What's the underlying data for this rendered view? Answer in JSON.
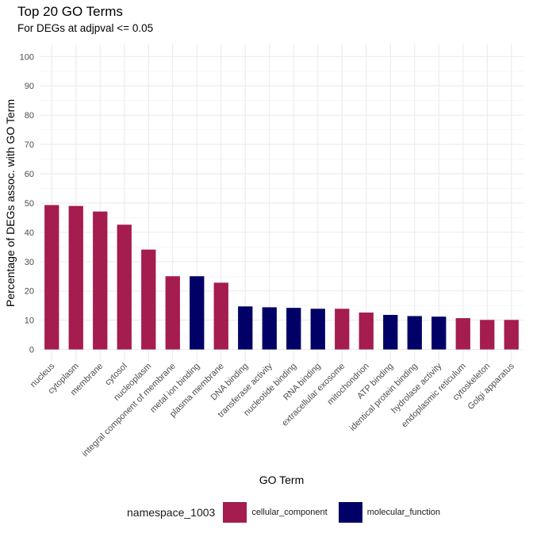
{
  "chart_data": {
    "type": "bar",
    "title": "Top 20 GO Terms",
    "subtitle": "For DEGs at adjpval <= 0.05",
    "xlabel": "GO Term",
    "ylabel": "Percentage of DEGs assoc. with GO Term",
    "ylim": [
      0,
      100
    ],
    "yticks": [
      0,
      10,
      20,
      30,
      40,
      50,
      60,
      70,
      80,
      90,
      100
    ],
    "grid": true,
    "legend": {
      "title": "namespace_1003",
      "position": "bottom",
      "entries": [
        {
          "label": "cellular_component",
          "color": "#A51C4F"
        },
        {
          "label": "molecular_function",
          "color": "#000066"
        }
      ]
    },
    "categories": [
      "nucleus",
      "cytoplasm",
      "membrane",
      "cytosol",
      "nucleoplasm",
      "integral component of membrane",
      "metal ion binding",
      "plasma membrane",
      "DNA binding",
      "transferase activity",
      "nucleotide binding",
      "RNA binding",
      "extracellular exosome",
      "mitochondrion",
      "ATP binding",
      "identical protein binding",
      "hydrolase activity",
      "endoplasmic reticulum",
      "cytoskeleton",
      "Golgi apparatus"
    ],
    "values": [
      49.3,
      49.0,
      47.1,
      42.6,
      34.1,
      25.0,
      25.0,
      22.8,
      14.7,
      14.4,
      14.2,
      13.9,
      13.9,
      12.6,
      11.8,
      11.4,
      11.2,
      10.7,
      10.1,
      10.1
    ],
    "namespace": [
      "cellular_component",
      "cellular_component",
      "cellular_component",
      "cellular_component",
      "cellular_component",
      "cellular_component",
      "molecular_function",
      "cellular_component",
      "molecular_function",
      "molecular_function",
      "molecular_function",
      "molecular_function",
      "cellular_component",
      "cellular_component",
      "molecular_function",
      "molecular_function",
      "molecular_function",
      "cellular_component",
      "cellular_component",
      "cellular_component"
    ]
  }
}
